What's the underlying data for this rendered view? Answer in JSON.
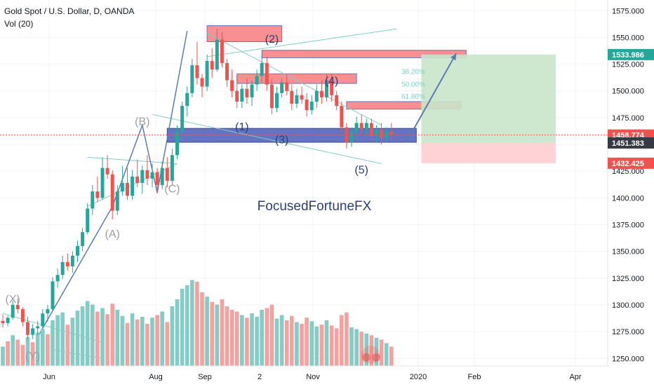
{
  "header": {
    "symbol_title": "Gold Spot / U.S. Dollar, D, OANDA",
    "volume_label": "Vol (20)"
  },
  "watermark": "FocusedFortuneFX",
  "colors": {
    "up": "#26a69a",
    "down": "#ef5350",
    "vol_up": "#84ccc5",
    "vol_down": "#f4a2a0",
    "wave_label": "#9e9e9e",
    "wave_label_dark": "#2a3f73",
    "zone_red": "#f77c80",
    "zone_blue": "#4a5bb8",
    "target_green": "#c8e6c9",
    "stop_red": "#ffcdd2",
    "projection_arrow": "#5b7bb5"
  },
  "chart_data": {
    "type": "candlestick",
    "instrument": "XAUUSD",
    "timeframe": "D",
    "y_axis": {
      "ticks": [
        "1575.000",
        "1550.000",
        "1525.000",
        "1500.000",
        "1475.000",
        "1450.000",
        "1425.000",
        "1400.000",
        "1375.000",
        "1350.000",
        "1325.000",
        "1300.000",
        "1275.000",
        "1250.000"
      ],
      "range": [
        1243,
        1585
      ]
    },
    "x_axis": {
      "labels": [
        "Jun",
        "Aug",
        "Sep",
        "2",
        "Nov",
        "2020",
        "Feb",
        "Apr"
      ]
    },
    "price_badges": [
      {
        "label": "1533.986",
        "value": 1533.986,
        "color": "#26a69a"
      },
      {
        "label": "1458.774",
        "value": 1458.774,
        "color": "#ef5350"
      },
      {
        "label": "1451.383",
        "value": 1451.383,
        "color": "#363a45"
      },
      {
        "label": "1432.425",
        "value": 1432.425,
        "color": "#ef5350"
      }
    ],
    "current_price": 1458.774,
    "wave_labels": [
      {
        "text": "(X)",
        "date_index": 2,
        "price": 1302,
        "dark": false
      },
      {
        "text": "(Y)",
        "date_index": 6,
        "price": 1249,
        "dark": false
      },
      {
        "text": "(A)",
        "date_index": 22,
        "price": 1363,
        "dark": false
      },
      {
        "text": "(B)",
        "date_index": 28,
        "price": 1468,
        "dark": false
      },
      {
        "text": "(C)",
        "date_index": 34,
        "price": 1405,
        "dark": false
      },
      {
        "text": "(1)",
        "date_index": 48,
        "price": 1463,
        "dark": true
      },
      {
        "text": "(2)",
        "date_index": 54,
        "price": 1545,
        "dark": true
      },
      {
        "text": "(3)",
        "date_index": 56,
        "price": 1451,
        "dark": true
      },
      {
        "text": "(4)",
        "date_index": 66,
        "price": 1506,
        "dark": true
      },
      {
        "text": "(5)",
        "date_index": 72,
        "price": 1423,
        "dark": true
      }
    ],
    "fib_levels": [
      {
        "label": "38.20%",
        "value": 1518.4
      },
      {
        "label": "50.00%",
        "value": 1506.7
      },
      {
        "label": "61.80%",
        "value": 1495.1
      }
    ],
    "zones": [
      {
        "kind": "red",
        "from_index": 41,
        "to_index": 56,
        "top": 1561,
        "bottom": 1546
      },
      {
        "kind": "red",
        "from_index": 52,
        "to_index": 93,
        "top": 1538,
        "bottom": 1531
      },
      {
        "kind": "red",
        "from_index": 47,
        "to_index": 71,
        "top": 1516,
        "bottom": 1507
      },
      {
        "kind": "red",
        "from_index": 69,
        "to_index": 92,
        "top": 1490,
        "bottom": 1483
      },
      {
        "kind": "blue",
        "from_index": 33,
        "to_index": 83,
        "top": 1465,
        "bottom": 1452
      },
      {
        "kind": "green_target",
        "from_index": 84,
        "to_index": 111,
        "top": 1533.986,
        "bottom": 1451.383
      },
      {
        "kind": "red_stop",
        "from_index": 84,
        "to_index": 111,
        "top": 1451.383,
        "bottom": 1432.425
      }
    ],
    "projection": {
      "from_index": 81,
      "from_price": 1452,
      "to_index": 91,
      "to_price": 1535
    },
    "candles": [
      [
        1285,
        1291,
        1279,
        1283
      ],
      [
        1283,
        1290,
        1280,
        1288
      ],
      [
        1288,
        1304,
        1286,
        1300
      ],
      [
        1300,
        1306,
        1292,
        1296
      ],
      [
        1296,
        1298,
        1280,
        1284
      ],
      [
        1284,
        1289,
        1268,
        1272
      ],
      [
        1272,
        1282,
        1268,
        1278
      ],
      [
        1278,
        1285,
        1272,
        1280
      ],
      [
        1280,
        1296,
        1278,
        1292
      ],
      [
        1292,
        1300,
        1284,
        1296
      ],
      [
        1296,
        1326,
        1294,
        1322
      ],
      [
        1322,
        1334,
        1316,
        1328
      ],
      [
        1328,
        1346,
        1324,
        1340
      ],
      [
        1340,
        1348,
        1332,
        1336
      ],
      [
        1336,
        1350,
        1330,
        1346
      ],
      [
        1346,
        1360,
        1340,
        1355
      ],
      [
        1355,
        1372,
        1350,
        1368
      ],
      [
        1368,
        1395,
        1366,
        1390
      ],
      [
        1390,
        1412,
        1384,
        1406
      ],
      [
        1406,
        1420,
        1396,
        1400
      ],
      [
        1400,
        1438,
        1398,
        1428
      ],
      [
        1428,
        1440,
        1418,
        1422
      ],
      [
        1422,
        1426,
        1380,
        1388
      ],
      [
        1388,
        1412,
        1384,
        1406
      ],
      [
        1406,
        1430,
        1402,
        1414
      ],
      [
        1414,
        1428,
        1398,
        1402
      ],
      [
        1402,
        1426,
        1398,
        1420
      ],
      [
        1420,
        1436,
        1410,
        1414
      ],
      [
        1414,
        1430,
        1404,
        1426
      ],
      [
        1426,
        1440,
        1412,
        1418
      ],
      [
        1418,
        1432,
        1410,
        1424
      ],
      [
        1424,
        1428,
        1404,
        1412
      ],
      [
        1412,
        1434,
        1408,
        1428
      ],
      [
        1428,
        1438,
        1410,
        1416
      ],
      [
        1416,
        1446,
        1412,
        1440
      ],
      [
        1440,
        1468,
        1436,
        1462
      ],
      [
        1462,
        1490,
        1456,
        1486
      ],
      [
        1486,
        1504,
        1476,
        1498
      ],
      [
        1498,
        1530,
        1494,
        1524
      ],
      [
        1524,
        1546,
        1506,
        1512
      ],
      [
        1512,
        1516,
        1494,
        1504
      ],
      [
        1504,
        1534,
        1500,
        1528
      ],
      [
        1528,
        1540,
        1512,
        1520
      ],
      [
        1520,
        1558,
        1518,
        1548
      ],
      [
        1548,
        1555,
        1522,
        1526
      ],
      [
        1526,
        1530,
        1504,
        1510
      ],
      [
        1510,
        1520,
        1494,
        1500
      ],
      [
        1500,
        1514,
        1484,
        1490
      ],
      [
        1490,
        1506,
        1484,
        1502
      ],
      [
        1502,
        1512,
        1488,
        1494
      ],
      [
        1494,
        1510,
        1486,
        1506
      ],
      [
        1506,
        1520,
        1500,
        1514
      ],
      [
        1514,
        1534,
        1508,
        1526
      ],
      [
        1526,
        1532,
        1500,
        1506
      ],
      [
        1506,
        1512,
        1478,
        1484
      ],
      [
        1484,
        1504,
        1480,
        1498
      ],
      [
        1498,
        1512,
        1494,
        1508
      ],
      [
        1508,
        1516,
        1496,
        1500
      ],
      [
        1500,
        1506,
        1482,
        1488
      ],
      [
        1488,
        1502,
        1484,
        1496
      ],
      [
        1496,
        1504,
        1488,
        1492
      ],
      [
        1492,
        1498,
        1476,
        1482
      ],
      [
        1482,
        1496,
        1478,
        1490
      ],
      [
        1490,
        1506,
        1484,
        1500
      ],
      [
        1500,
        1510,
        1488,
        1494
      ],
      [
        1494,
        1516,
        1490,
        1510
      ],
      [
        1510,
        1516,
        1490,
        1496
      ],
      [
        1496,
        1500,
        1482,
        1486
      ],
      [
        1486,
        1490,
        1462,
        1466
      ],
      [
        1466,
        1470,
        1446,
        1452
      ],
      [
        1452,
        1466,
        1448,
        1462
      ],
      [
        1462,
        1476,
        1456,
        1470
      ],
      [
        1470,
        1478,
        1460,
        1464
      ],
      [
        1464,
        1474,
        1458,
        1470
      ],
      [
        1470,
        1474,
        1454,
        1458
      ],
      [
        1458,
        1468,
        1452,
        1464
      ],
      [
        1464,
        1470,
        1450,
        1456
      ],
      [
        1456,
        1466,
        1452,
        1462
      ],
      [
        1462,
        1470,
        1454,
        1459
      ]
    ],
    "volumes": [
      [
        22,
        1
      ],
      [
        28,
        0
      ],
      [
        35,
        1
      ],
      [
        30,
        0
      ],
      [
        24,
        0
      ],
      [
        33,
        1
      ],
      [
        27,
        0
      ],
      [
        38,
        1
      ],
      [
        42,
        1
      ],
      [
        36,
        0
      ],
      [
        52,
        1
      ],
      [
        58,
        1
      ],
      [
        61,
        1
      ],
      [
        47,
        0
      ],
      [
        55,
        1
      ],
      [
        63,
        1
      ],
      [
        68,
        1
      ],
      [
        74,
        1
      ],
      [
        70,
        1
      ],
      [
        62,
        0
      ],
      [
        66,
        1
      ],
      [
        59,
        0
      ],
      [
        71,
        0
      ],
      [
        64,
        1
      ],
      [
        57,
        1
      ],
      [
        49,
        0
      ],
      [
        60,
        1
      ],
      [
        53,
        0
      ],
      [
        56,
        1
      ],
      [
        48,
        0
      ],
      [
        55,
        1
      ],
      [
        58,
        0
      ],
      [
        62,
        1
      ],
      [
        50,
        0
      ],
      [
        68,
        1
      ],
      [
        76,
        1
      ],
      [
        88,
        1
      ],
      [
        92,
        1
      ],
      [
        98,
        1
      ],
      [
        96,
        0
      ],
      [
        84,
        0
      ],
      [
        79,
        1
      ],
      [
        73,
        0
      ],
      [
        70,
        1
      ],
      [
        76,
        0
      ],
      [
        68,
        0
      ],
      [
        64,
        0
      ],
      [
        62,
        0
      ],
      [
        58,
        1
      ],
      [
        55,
        0
      ],
      [
        60,
        1
      ],
      [
        56,
        1
      ],
      [
        64,
        1
      ],
      [
        66,
        0
      ],
      [
        70,
        0
      ],
      [
        54,
        1
      ],
      [
        58,
        1
      ],
      [
        52,
        0
      ],
      [
        57,
        0
      ],
      [
        50,
        1
      ],
      [
        48,
        0
      ],
      [
        55,
        0
      ],
      [
        51,
        1
      ],
      [
        45,
        1
      ],
      [
        47,
        0
      ],
      [
        52,
        1
      ],
      [
        46,
        0
      ],
      [
        43,
        0
      ],
      [
        58,
        0
      ],
      [
        61,
        0
      ],
      [
        44,
        1
      ],
      [
        42,
        1
      ],
      [
        39,
        0
      ],
      [
        37,
        1
      ],
      [
        35,
        0
      ],
      [
        32,
        1
      ],
      [
        30,
        0
      ],
      [
        26,
        1
      ],
      [
        22,
        0
      ]
    ]
  }
}
